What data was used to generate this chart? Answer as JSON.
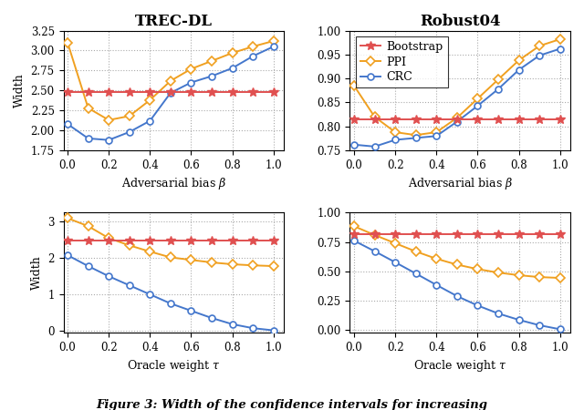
{
  "beta": [
    0.0,
    0.1,
    0.2,
    0.3,
    0.4,
    0.5,
    0.6,
    0.7,
    0.8,
    0.9,
    1.0
  ],
  "tau": [
    0.0,
    0.1,
    0.2,
    0.3,
    0.4,
    0.5,
    0.6,
    0.7,
    0.8,
    0.9,
    1.0
  ],
  "trec_beta_bootstrap": [
    2.48,
    2.48,
    2.48,
    2.48,
    2.48,
    2.48,
    2.48,
    2.48,
    2.48,
    2.48,
    2.48
  ],
  "trec_beta_ppi": [
    3.1,
    2.28,
    2.13,
    2.18,
    2.38,
    2.62,
    2.77,
    2.87,
    2.97,
    3.05,
    3.12
  ],
  "trec_beta_crc": [
    2.08,
    1.9,
    1.88,
    1.98,
    2.12,
    2.47,
    2.6,
    2.68,
    2.78,
    2.93,
    3.05
  ],
  "robust_beta_bootstrap": [
    0.815,
    0.815,
    0.815,
    0.815,
    0.815,
    0.815,
    0.815,
    0.815,
    0.815,
    0.815,
    0.815
  ],
  "robust_beta_ppi": [
    0.885,
    0.82,
    0.788,
    0.782,
    0.788,
    0.818,
    0.858,
    0.898,
    0.938,
    0.968,
    0.982
  ],
  "robust_beta_crc": [
    0.762,
    0.758,
    0.772,
    0.776,
    0.78,
    0.81,
    0.843,
    0.878,
    0.918,
    0.948,
    0.962
  ],
  "trec_tau_bootstrap": [
    2.48,
    2.48,
    2.48,
    2.48,
    2.48,
    2.48,
    2.48,
    2.48,
    2.48,
    2.48,
    2.48
  ],
  "trec_tau_ppi": [
    3.1,
    2.88,
    2.55,
    2.35,
    2.18,
    2.02,
    1.95,
    1.88,
    1.83,
    1.8,
    1.78
  ],
  "trec_tau_crc": [
    2.08,
    1.78,
    1.5,
    1.25,
    1.0,
    0.75,
    0.55,
    0.35,
    0.18,
    0.07,
    0.01
  ],
  "robust_tau_bootstrap": [
    0.815,
    0.815,
    0.815,
    0.815,
    0.815,
    0.815,
    0.815,
    0.815,
    0.815,
    0.815,
    0.815
  ],
  "robust_tau_ppi": [
    0.885,
    0.81,
    0.74,
    0.67,
    0.608,
    0.558,
    0.52,
    0.49,
    0.468,
    0.452,
    0.445
  ],
  "robust_tau_crc": [
    0.762,
    0.672,
    0.578,
    0.482,
    0.385,
    0.29,
    0.21,
    0.142,
    0.088,
    0.042,
    0.008
  ],
  "color_bootstrap": "#e05050",
  "color_ppi": "#f0a020",
  "color_crc": "#4477cc",
  "title_trec": "TREC-DL",
  "title_robust": "Robust04",
  "xlabel_beta": "Adversarial bias $\\beta$",
  "xlabel_tau": "Oracle weight $\\tau$",
  "ylabel": "Width",
  "trec_beta_ylim": [
    1.75,
    3.25
  ],
  "trec_beta_yticks": [
    1.75,
    2.0,
    2.25,
    2.5,
    2.75,
    3.0,
    3.25
  ],
  "robust_beta_ylim": [
    0.75,
    1.0
  ],
  "robust_beta_yticks": [
    0.75,
    0.8,
    0.85,
    0.9,
    0.95,
    1.0
  ],
  "trec_tau_ylim": [
    -0.05,
    3.25
  ],
  "trec_tau_yticks": [
    0.0,
    1.0,
    2.0,
    3.0
  ],
  "robust_tau_ylim": [
    -0.02,
    1.0
  ],
  "robust_tau_yticks": [
    0.0,
    0.25,
    0.5,
    0.75,
    1.0
  ],
  "caption": "Figure 3: Width of the confidence intervals for increasing"
}
